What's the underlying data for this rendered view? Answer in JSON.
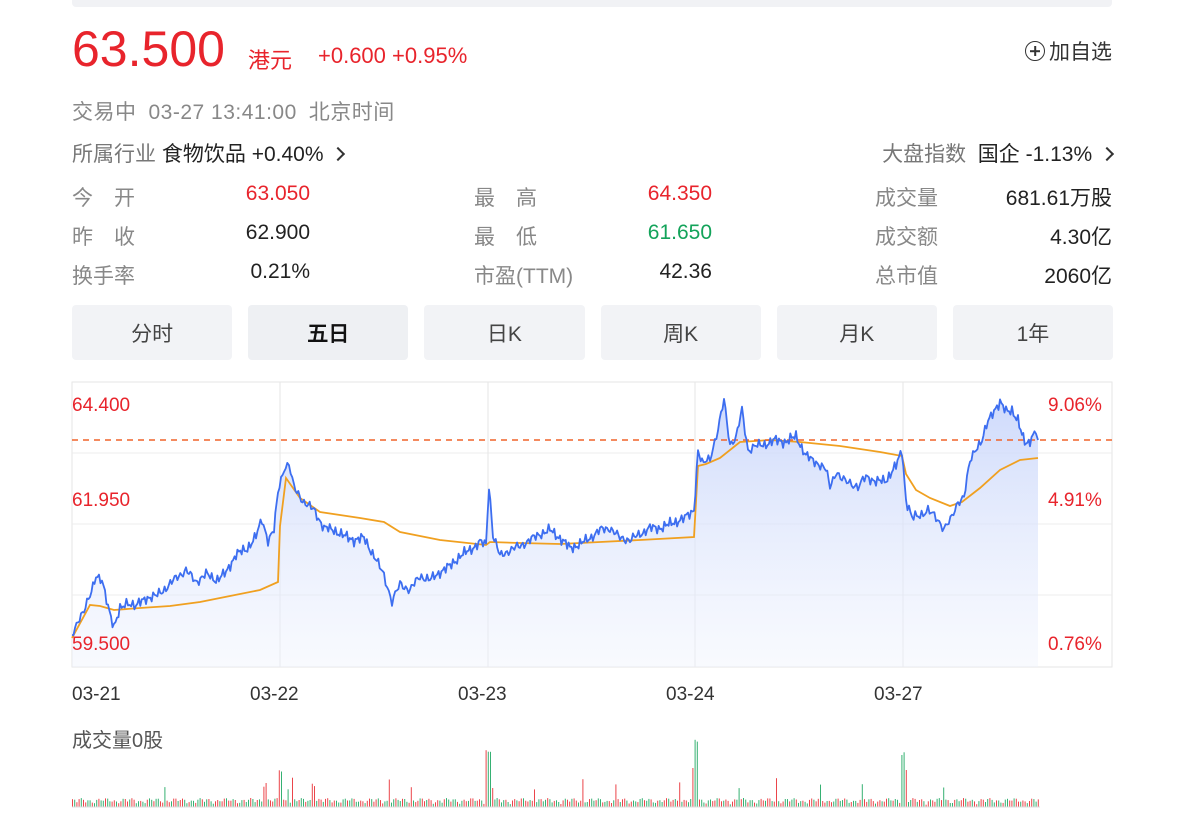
{
  "quote": {
    "price": "63.500",
    "currency": "港元",
    "change": "+0.600",
    "change_pct": "+0.95%",
    "add_watch": "加自选"
  },
  "status": {
    "state": "交易中",
    "datetime": "03-27 13:41:00",
    "timezone": "北京时间"
  },
  "industry": {
    "label": "所属行业",
    "name": "食物饮品",
    "change": "+0.40%"
  },
  "index": {
    "label": "大盘指数",
    "name": "国企",
    "change": "-1.13%"
  },
  "stats": {
    "open": {
      "label": "今　开",
      "value": "63.050"
    },
    "prev_close": {
      "label": "昨　收",
      "value": "62.900"
    },
    "turnover_rate": {
      "label": "换手率",
      "value": "0.21%"
    },
    "high": {
      "label": "最　高",
      "value": "64.350"
    },
    "low": {
      "label": "最　低",
      "value": "61.650"
    },
    "pe": {
      "label": "市盈(TTM)",
      "value": "42.36"
    },
    "volume": {
      "label": "成交量",
      "value": "681.61万股"
    },
    "amount": {
      "label": "成交额",
      "value": "4.30亿"
    },
    "market_cap": {
      "label": "总市值",
      "value": "2060亿"
    }
  },
  "tabs": [
    "分时",
    "五日",
    "日K",
    "周K",
    "月K",
    "1年"
  ],
  "active_tab": 1,
  "chart": {
    "y_left": [
      "64.400",
      "61.950",
      "59.500"
    ],
    "y_right": [
      "9.06%",
      "4.91%",
      "0.76%"
    ],
    "x_labels": [
      "03-21",
      "03-22",
      "03-23",
      "03-24",
      "03-27"
    ],
    "volume_label": "成交量0股",
    "colors": {
      "price": "#3d6ef0",
      "avg": "#f0a020",
      "ref": "#f0642a",
      "up": "#e8242c",
      "down": "#13a35a"
    }
  }
}
